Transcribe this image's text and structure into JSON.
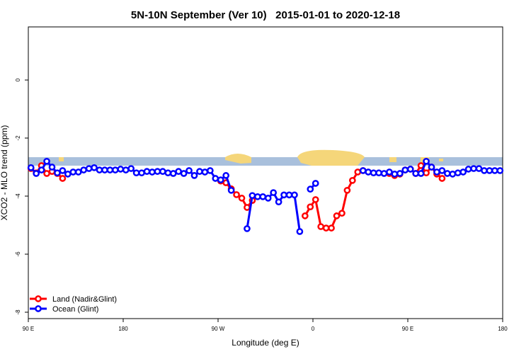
{
  "chart_data": {
    "type": "line",
    "title": "5N-10N September (Ver 10)   2015-01-01 to 2020-12-18",
    "xlabel": "Longitude (deg E)",
    "ylabel": "XCO2 - MLO trend (ppm)",
    "xlim": [
      90,
      540
    ],
    "xticks": [
      {
        "value": 90,
        "label": "90 E"
      },
      {
        "value": 180,
        "label": "180"
      },
      {
        "value": 270,
        "label": "90 W"
      },
      {
        "value": 360,
        "label": "0"
      },
      {
        "value": 450,
        "label": "90 E"
      },
      {
        "value": 540,
        "label": "180"
      }
    ],
    "ylim": [
      -8.22,
      1.83
    ],
    "yticks": [
      -8,
      -6,
      -4,
      -2,
      0
    ],
    "legend": "bottom-left",
    "x": [
      92.5,
      97.5,
      102.5,
      107.5,
      112.5,
      117.5,
      122.5,
      127.5,
      132.5,
      137.5,
      142.5,
      147.5,
      152.5,
      157.5,
      162.5,
      167.5,
      172.5,
      177.5,
      182.5,
      187.5,
      192.5,
      197.5,
      202.5,
      207.5,
      212.5,
      217.5,
      222.5,
      227.5,
      232.5,
      237.5,
      242.5,
      247.5,
      252.5,
      257.5,
      262.5,
      267.5,
      272.5,
      277.5,
      282.5,
      287.5,
      292.5,
      297.5,
      302.5,
      307.5,
      312.5,
      317.5,
      322.5,
      327.5,
      332.5,
      337.5,
      342.5,
      347.5,
      352.5,
      357.5,
      362.5,
      367.5,
      372.5,
      377.5,
      382.5,
      387.5,
      392.5,
      397.5,
      402.5,
      407.5,
      412.5,
      417.5,
      422.5,
      427.5,
      432.5,
      437.5,
      442.5,
      447.5,
      452.5,
      457.5,
      462.5,
      467.5,
      472.5,
      477.5,
      482.5,
      487.5,
      492.5,
      497.5,
      502.5,
      507.5,
      512.5,
      517.5,
      522.5,
      527.5,
      532.5,
      537.5
    ],
    "series": [
      {
        "name": "Land (Nadir&Glint)",
        "color": "#ff0000",
        "values": [
          -3.05,
          -3.2,
          -2.95,
          -3.22,
          -3.15,
          -3.22,
          -3.39,
          null,
          null,
          null,
          null,
          null,
          null,
          null,
          null,
          null,
          null,
          null,
          null,
          null,
          null,
          null,
          null,
          null,
          null,
          null,
          null,
          null,
          null,
          null,
          null,
          null,
          null,
          null,
          null,
          null,
          -3.48,
          -3.54,
          -3.75,
          -3.95,
          -4.07,
          -4.39,
          -4.15,
          null,
          null,
          null,
          null,
          null,
          null,
          null,
          null,
          null,
          -4.68,
          -4.37,
          -4.12,
          -5.05,
          -5.1,
          -5.1,
          -4.68,
          -4.59,
          -3.8,
          -3.46,
          -3.17,
          -3.12,
          null,
          null,
          null,
          null,
          -3.22,
          -3.29,
          -3.24,
          -3.1,
          -3.07,
          -3.22,
          -2.95,
          -3.2,
          -3,
          -3.24,
          -3.39,
          null,
          null,
          null,
          null,
          null,
          null,
          null,
          null,
          null,
          null,
          null
        ]
      },
      {
        "name": "Ocean (Glint)",
        "color": "#0000ff",
        "values": [
          -3.02,
          -3.22,
          -3.1,
          -2.8,
          -3,
          -3.2,
          -3.12,
          -3.24,
          -3.17,
          -3.17,
          -3.1,
          -3.05,
          -3.02,
          -3.1,
          -3.1,
          -3.1,
          -3.1,
          -3.07,
          -3.1,
          -3.05,
          -3.2,
          -3.2,
          -3.15,
          -3.17,
          -3.15,
          -3.15,
          -3.2,
          -3.22,
          -3.15,
          -3.22,
          -3.12,
          -3.29,
          -3.15,
          -3.17,
          -3.12,
          -3.39,
          -3.44,
          -3.29,
          -3.8,
          null,
          null,
          -5.12,
          -3.98,
          -4.02,
          -4.02,
          -4.07,
          -3.88,
          -4.2,
          -3.96,
          -3.96,
          -3.96,
          -5.22,
          null,
          -3.76,
          -3.56,
          null,
          null,
          null,
          null,
          null,
          null,
          null,
          null,
          -3.12,
          -3.17,
          -3.2,
          -3.2,
          -3.22,
          -3.17,
          -3.24,
          -3.22,
          -3.1,
          -3.07,
          -3.22,
          -3.22,
          -2.8,
          -3,
          -3.17,
          -3.12,
          -3.22,
          -3.24,
          -3.2,
          -3.17,
          -3.07,
          -3.05,
          -3.05,
          -3.12,
          -3.12,
          -3.12,
          -3.12
        ]
      }
    ]
  }
}
